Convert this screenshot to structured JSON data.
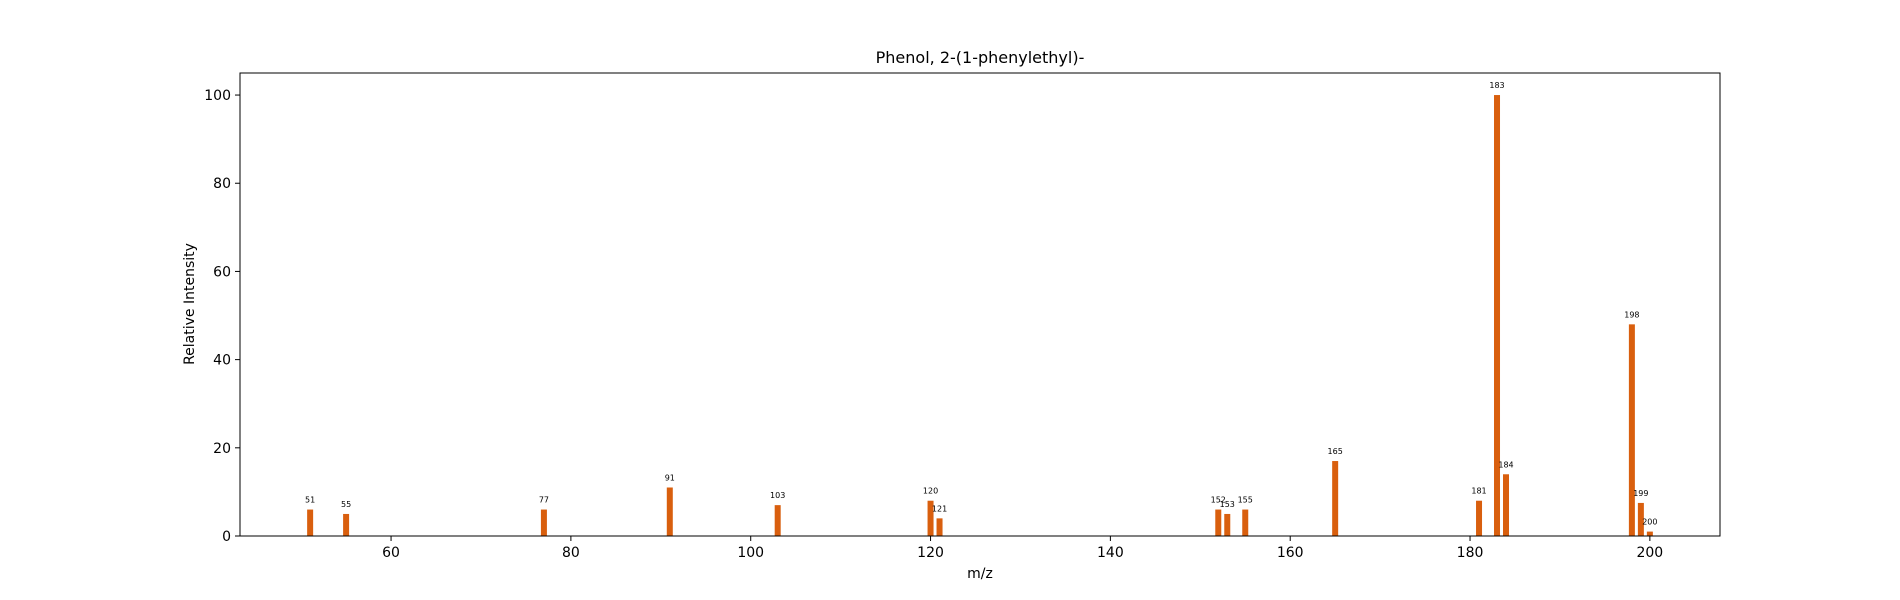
{
  "chart_data": {
    "type": "bar",
    "title": "Phenol, 2-(1-phenylethyl)-",
    "xlabel": "m/z",
    "ylabel": "Relative Intensity",
    "xlim": [
      43.2,
      207.8
    ],
    "ylim": [
      0,
      105
    ],
    "xticks": [
      60,
      80,
      100,
      120,
      140,
      160,
      180,
      200
    ],
    "yticks": [
      0,
      20,
      40,
      60,
      80,
      100
    ],
    "bar_color": "#d95f0e",
    "grid": false,
    "peaks": [
      {
        "x": 51,
        "y": 6,
        "label": "51"
      },
      {
        "x": 55,
        "y": 5,
        "label": "55"
      },
      {
        "x": 77,
        "y": 6,
        "label": "77"
      },
      {
        "x": 91,
        "y": 11,
        "label": "91"
      },
      {
        "x": 103,
        "y": 7,
        "label": "103"
      },
      {
        "x": 120,
        "y": 8,
        "label": "120"
      },
      {
        "x": 121,
        "y": 4,
        "label": "121"
      },
      {
        "x": 152,
        "y": 6,
        "label": "152"
      },
      {
        "x": 153,
        "y": 5,
        "label": "153"
      },
      {
        "x": 155,
        "y": 6,
        "label": "155"
      },
      {
        "x": 165,
        "y": 17,
        "label": "165"
      },
      {
        "x": 181,
        "y": 8,
        "label": "181"
      },
      {
        "x": 183,
        "y": 100,
        "label": "183"
      },
      {
        "x": 184,
        "y": 14,
        "label": "184"
      },
      {
        "x": 198,
        "y": 48,
        "label": "198"
      },
      {
        "x": 199,
        "y": 7.5,
        "label": "199"
      },
      {
        "x": 200,
        "y": 1,
        "label": "200"
      }
    ]
  }
}
